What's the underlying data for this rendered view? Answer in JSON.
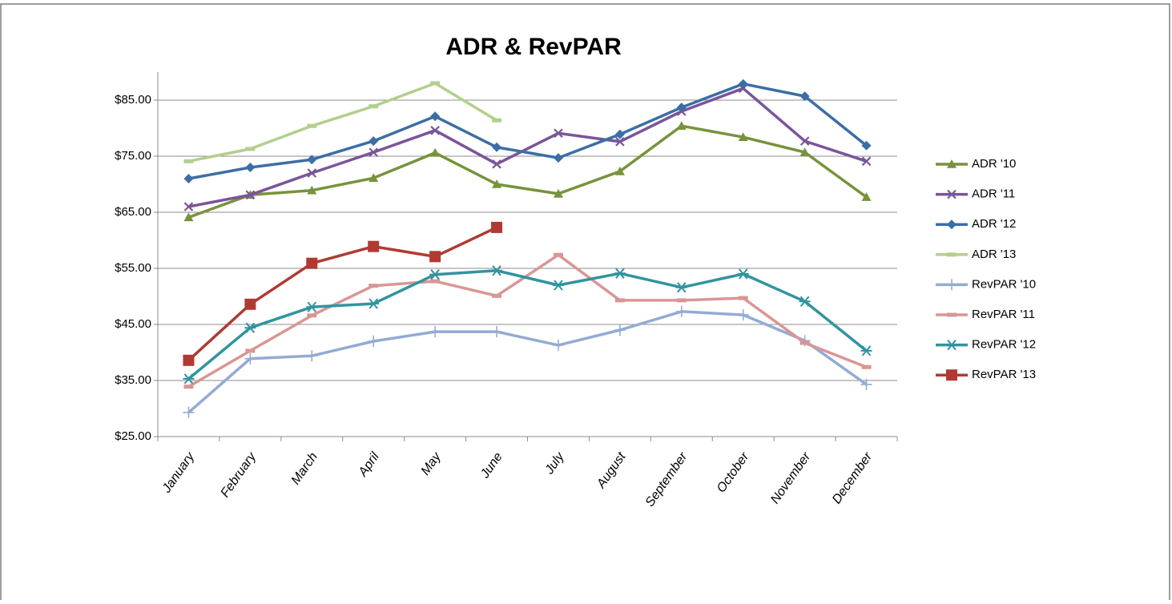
{
  "chart_data": {
    "type": "line",
    "title": "ADR & RevPAR",
    "categories": [
      "January",
      "February",
      "March",
      "April",
      "May",
      "June",
      "July",
      "August",
      "September",
      "October",
      "November",
      "December"
    ],
    "ylim": [
      25,
      90
    ],
    "yticks": [
      {
        "value": 25,
        "label": "$25.00"
      },
      {
        "value": 35,
        "label": "$35.00"
      },
      {
        "value": 45,
        "label": "$45.00"
      },
      {
        "value": 55,
        "label": "$55.00"
      },
      {
        "value": 65,
        "label": "$65.00"
      },
      {
        "value": 75,
        "label": "$75.00"
      },
      {
        "value": 85,
        "label": "$85.00"
      }
    ],
    "grid": true,
    "legend": "right",
    "series": [
      {
        "name": "ADR '10",
        "color": "#77933c",
        "marker": "triangle",
        "values": [
          64.1,
          68.1,
          68.9,
          71.1,
          75.6,
          70,
          68.3,
          72.3,
          80.4,
          78.4,
          75.7,
          67.7
        ]
      },
      {
        "name": "ADR '11",
        "color": "#7a559a",
        "marker": "x",
        "values": [
          66,
          68.1,
          72,
          75.7,
          79.6,
          73.6,
          79.1,
          77.6,
          83,
          87.1,
          77.7,
          74.1
        ]
      },
      {
        "name": "ADR '12",
        "color": "#3b6ea5",
        "marker": "diamond",
        "values": [
          71,
          73,
          74.4,
          77.7,
          82.1,
          76.6,
          74.7,
          78.9,
          83.7,
          87.9,
          85.7,
          76.9
        ]
      },
      {
        "name": "ADR '13",
        "color": "#b3cf8c",
        "marker": "dash",
        "values": [
          74.1,
          76.3,
          80.4,
          83.9,
          88,
          81.4,
          null,
          null,
          null,
          null,
          null,
          null
        ]
      },
      {
        "name": "RevPAR '10",
        "color": "#93abd4",
        "marker": "plus",
        "values": [
          29.3,
          38.9,
          39.4,
          42,
          43.7,
          43.7,
          41.3,
          44,
          47.3,
          46.7,
          42.1,
          34.3
        ]
      },
      {
        "name": "RevPAR '11",
        "color": "#d99694",
        "marker": "dash",
        "values": [
          33.9,
          40.3,
          46.6,
          51.9,
          52.7,
          50.1,
          57.4,
          49.3,
          49.3,
          49.7,
          41.7,
          37.4
        ]
      },
      {
        "name": "RevPAR '12",
        "color": "#31949f",
        "marker": "asterisk",
        "values": [
          35.3,
          44.4,
          48.1,
          48.7,
          53.9,
          54.6,
          52,
          54.1,
          51.6,
          54,
          49.1,
          40.3
        ]
      },
      {
        "name": "RevPAR '13",
        "color": "#b03a32",
        "marker": "square",
        "values": [
          38.6,
          48.6,
          55.9,
          58.9,
          57.1,
          62.3,
          null,
          null,
          null,
          null,
          null,
          null
        ]
      }
    ]
  }
}
